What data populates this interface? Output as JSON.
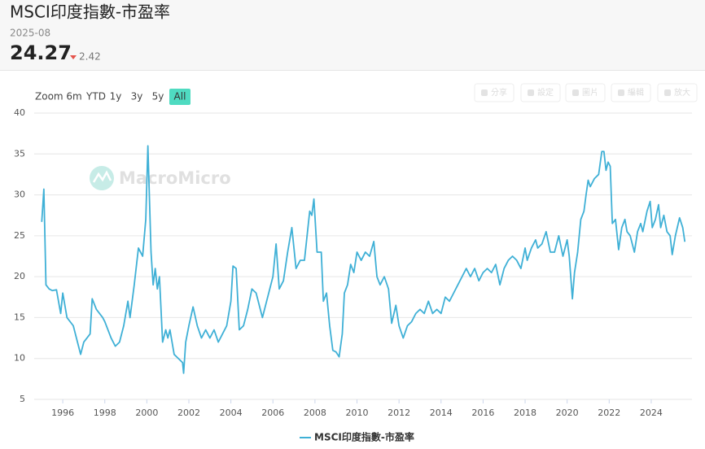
{
  "header": {
    "title": "MSCI印度指數-市盈率",
    "date": "2025-08",
    "change": 2.42
  },
  "range_selector": {
    "label": "Zoom",
    "buttons": [
      "6m",
      "YTD",
      "1y",
      "3y",
      "5y",
      "All"
    ],
    "selected": 5
  },
  "toolbar": [
    "分享",
    "設定",
    "圖片",
    "編輯",
    "放大"
  ],
  "watermark": "MacroMicro",
  "chart_data": {
    "type": "line",
    "x": [
      1995.0,
      1995.1,
      1995.2,
      1995.35,
      1995.5,
      1995.7,
      1995.9,
      1996.0,
      1996.2,
      1996.5,
      1996.7,
      1996.85,
      1997.0,
      1997.3,
      1997.4,
      1997.6,
      1997.9,
      1998.0,
      1998.3,
      1998.5,
      1998.7,
      1998.9,
      1999.1,
      1999.2,
      1999.4,
      1999.6,
      1999.8,
      1999.95,
      2000.05,
      2000.2,
      2000.3,
      2000.4,
      2000.5,
      2000.6,
      2000.75,
      2000.9,
      2001.0,
      2001.1,
      2001.3,
      2001.5,
      2001.7,
      2001.75,
      2001.85,
      2002.0,
      2002.2,
      2002.4,
      2002.6,
      2002.8,
      2003.0,
      2003.2,
      2003.4,
      2003.6,
      2003.8,
      2004.0,
      2004.1,
      2004.25,
      2004.4,
      2004.6,
      2004.8,
      2005.0,
      2005.2,
      2005.4,
      2005.5,
      2005.7,
      2006.0,
      2006.15,
      2006.3,
      2006.5,
      2006.7,
      2006.9,
      2007.1,
      2007.3,
      2007.5,
      2007.75,
      2007.85,
      2007.95,
      2008.1,
      2008.3,
      2008.4,
      2008.55,
      2008.7,
      2008.85,
      2009.0,
      2009.15,
      2009.3,
      2009.4,
      2009.55,
      2009.7,
      2009.85,
      2010.0,
      2010.2,
      2010.4,
      2010.6,
      2010.8,
      2010.95,
      2011.1,
      2011.3,
      2011.5,
      2011.65,
      2011.85,
      2012.0,
      2012.2,
      2012.4,
      2012.6,
      2012.8,
      2013.0,
      2013.2,
      2013.4,
      2013.6,
      2013.8,
      2014.0,
      2014.2,
      2014.4,
      2014.6,
      2014.8,
      2015.0,
      2015.2,
      2015.4,
      2015.6,
      2015.8,
      2016.0,
      2016.2,
      2016.4,
      2016.6,
      2016.8,
      2017.0,
      2017.2,
      2017.4,
      2017.6,
      2017.8,
      2018.0,
      2018.1,
      2018.3,
      2018.5,
      2018.6,
      2018.8,
      2019.0,
      2019.2,
      2019.4,
      2019.6,
      2019.8,
      2020.0,
      2020.1,
      2020.25,
      2020.35,
      2020.5,
      2020.65,
      2020.8,
      2020.9,
      2021.0,
      2021.1,
      2021.3,
      2021.5,
      2021.65,
      2021.75,
      2021.85,
      2021.95,
      2022.05,
      2022.15,
      2022.3,
      2022.45,
      2022.6,
      2022.75,
      2022.85,
      2023.0,
      2023.2,
      2023.35,
      2023.5,
      2023.6,
      2023.8,
      2023.95,
      2024.05,
      2024.2,
      2024.35,
      2024.45,
      2024.6,
      2024.75,
      2024.9,
      2025.0,
      2025.15,
      2025.35,
      2025.5,
      2025.6
    ],
    "series": [
      {
        "name": "MSCI印度指數-市盈率",
        "color": "#3fb0d6",
        "values": [
          26.7,
          30.7,
          19.0,
          18.5,
          18.3,
          18.4,
          15.5,
          18.0,
          15.0,
          14.0,
          12.0,
          10.5,
          12.0,
          13.0,
          17.3,
          16.0,
          15.0,
          14.5,
          12.5,
          11.5,
          12.0,
          14.0,
          17.0,
          15.0,
          19.0,
          23.5,
          22.5,
          27.0,
          36.0,
          23.0,
          19.0,
          21.0,
          18.5,
          20.0,
          12.0,
          13.5,
          12.5,
          13.5,
          10.5,
          10.0,
          9.5,
          8.2,
          12.0,
          14.0,
          16.3,
          14.0,
          12.5,
          13.5,
          12.5,
          13.5,
          12.0,
          13.0,
          14.0,
          17.0,
          21.3,
          21.0,
          13.5,
          14.0,
          16.0,
          18.5,
          18.0,
          16.0,
          15.0,
          17.0,
          20.0,
          24.0,
          18.5,
          19.5,
          23.0,
          26.0,
          21.0,
          22.0,
          22.0,
          28.0,
          27.5,
          29.5,
          23.0,
          23.0,
          17.0,
          18.0,
          14.0,
          11.0,
          10.8,
          10.2,
          13.0,
          18.0,
          19.0,
          21.5,
          20.5,
          23.0,
          22.0,
          23.0,
          22.5,
          24.3,
          20.0,
          19.0,
          20.0,
          18.5,
          14.3,
          16.5,
          14.0,
          12.5,
          14.0,
          14.5,
          15.5,
          16.0,
          15.5,
          17.0,
          15.5,
          16.0,
          15.5,
          17.5,
          17.0,
          18.0,
          19.0,
          20.0,
          21.0,
          20.0,
          21.0,
          19.5,
          20.5,
          21.0,
          20.5,
          21.5,
          19.0,
          21.0,
          22.0,
          22.5,
          22.0,
          21.0,
          23.5,
          22.0,
          23.5,
          24.5,
          23.5,
          24.0,
          25.5,
          23.0,
          23.0,
          25.0,
          22.5,
          24.5,
          22.5,
          17.3,
          20.5,
          23.0,
          27.0,
          28.0,
          30.0,
          31.8,
          31.0,
          32.0,
          32.5,
          35.3,
          35.3,
          33.0,
          34.0,
          33.5,
          26.5,
          27.0,
          23.3,
          26.0,
          27.0,
          25.5,
          25.0,
          23.0,
          25.5,
          26.5,
          25.5,
          28.0,
          29.2,
          26.0,
          27.0,
          28.8,
          26.0,
          27.5,
          25.5,
          25.0,
          22.7,
          25.0,
          27.2,
          26.0,
          24.27
        ]
      }
    ],
    "xlim": [
      1994.64,
      2025.94
    ],
    "xticks": [
      1996,
      1998,
      2000,
      2002,
      2004,
      2006,
      2008,
      2010,
      2012,
      2014,
      2016,
      2018,
      2020,
      2022,
      2024
    ],
    "ylim": [
      5,
      40
    ],
    "yticks": [
      5,
      10,
      15,
      20,
      25,
      30,
      35,
      40
    ],
    "grid": true,
    "legend": "bottom"
  }
}
